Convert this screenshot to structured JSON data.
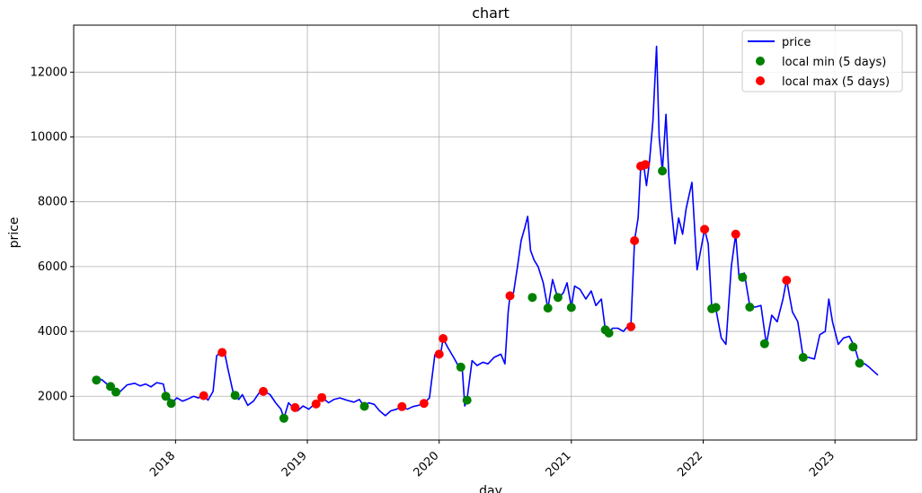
{
  "chart_data": {
    "type": "line",
    "title": "chart",
    "xlabel": "day",
    "ylabel": "price",
    "x_range": [
      "2017-03-25",
      "2023-08-15"
    ],
    "ylim": [
      650,
      13450
    ],
    "grid": true,
    "legend_placement": "top-right",
    "x_ticks": [
      "2018",
      "2019",
      "2020",
      "2021",
      "2022",
      "2023"
    ],
    "y_ticks": [
      2000,
      4000,
      6000,
      8000,
      10000,
      12000
    ],
    "series": [
      {
        "name": "price",
        "kind": "line",
        "color": "#0000ff",
        "points": [
          [
            "2017-05-27",
            2450
          ],
          [
            "2017-06-10",
            2520
          ],
          [
            "2017-06-25",
            2380
          ],
          [
            "2017-07-05",
            2280
          ],
          [
            "2017-07-20",
            2120
          ],
          [
            "2017-08-01",
            2150
          ],
          [
            "2017-08-20",
            2350
          ],
          [
            "2017-09-10",
            2400
          ],
          [
            "2017-09-25",
            2320
          ],
          [
            "2017-10-10",
            2380
          ],
          [
            "2017-10-25",
            2290
          ],
          [
            "2017-11-10",
            2420
          ],
          [
            "2017-11-28",
            2380
          ],
          [
            "2017-12-05",
            2020
          ],
          [
            "2017-12-12",
            2050
          ],
          [
            "2017-12-20",
            1780
          ],
          [
            "2018-01-05",
            1950
          ],
          [
            "2018-01-20",
            1850
          ],
          [
            "2018-02-05",
            1920
          ],
          [
            "2018-02-20",
            2000
          ],
          [
            "2018-03-05",
            1950
          ],
          [
            "2018-03-20",
            2020
          ],
          [
            "2018-04-01",
            1880
          ],
          [
            "2018-04-15",
            2150
          ],
          [
            "2018-04-25",
            3250
          ],
          [
            "2018-05-05",
            3350
          ],
          [
            "2018-05-15",
            3450
          ],
          [
            "2018-05-25",
            2900
          ],
          [
            "2018-06-10",
            2100
          ],
          [
            "2018-06-25",
            1900
          ],
          [
            "2018-07-05",
            2050
          ],
          [
            "2018-07-20",
            1720
          ],
          [
            "2018-08-05",
            1850
          ],
          [
            "2018-08-20",
            2100
          ],
          [
            "2018-09-05",
            2150
          ],
          [
            "2018-09-20",
            2050
          ],
          [
            "2018-10-05",
            1800
          ],
          [
            "2018-10-20",
            1600
          ],
          [
            "2018-10-28",
            1320
          ],
          [
            "2018-11-10",
            1800
          ],
          [
            "2018-11-22",
            1650
          ],
          [
            "2018-12-05",
            1550
          ],
          [
            "2018-12-20",
            1700
          ],
          [
            "2019-01-05",
            1600
          ],
          [
            "2019-01-20",
            1750
          ],
          [
            "2019-02-02",
            1850
          ],
          [
            "2019-02-12",
            1950
          ],
          [
            "2019-03-01",
            1800
          ],
          [
            "2019-03-15",
            1900
          ],
          [
            "2019-04-01",
            1950
          ],
          [
            "2019-04-20",
            1880
          ],
          [
            "2019-05-10",
            1820
          ],
          [
            "2019-05-25",
            1900
          ],
          [
            "2019-06-08",
            1680
          ],
          [
            "2019-06-20",
            1800
          ],
          [
            "2019-07-05",
            1750
          ],
          [
            "2019-07-20",
            1550
          ],
          [
            "2019-08-05",
            1400
          ],
          [
            "2019-08-20",
            1550
          ],
          [
            "2019-09-05",
            1600
          ],
          [
            "2019-09-20",
            1680
          ],
          [
            "2019-10-05",
            1600
          ],
          [
            "2019-10-20",
            1680
          ],
          [
            "2019-11-05",
            1720
          ],
          [
            "2019-11-20",
            1780
          ],
          [
            "2019-12-05",
            1950
          ],
          [
            "2019-12-20",
            3280
          ],
          [
            "2020-01-05",
            3300
          ],
          [
            "2020-01-12",
            3780
          ],
          [
            "2020-01-25",
            3500
          ],
          [
            "2020-02-10",
            3200
          ],
          [
            "2020-02-25",
            2900
          ],
          [
            "2020-03-05",
            2850
          ],
          [
            "2020-03-12",
            1700
          ],
          [
            "2020-03-18",
            1900
          ],
          [
            "2020-04-01",
            3100
          ],
          [
            "2020-04-15",
            2950
          ],
          [
            "2020-05-01",
            3050
          ],
          [
            "2020-05-15",
            3000
          ],
          [
            "2020-06-01",
            3200
          ],
          [
            "2020-06-20",
            3300
          ],
          [
            "2020-07-01",
            3000
          ],
          [
            "2020-07-10",
            4600
          ],
          [
            "2020-07-15",
            5100
          ],
          [
            "2020-07-25",
            5200
          ],
          [
            "2020-08-05",
            6000
          ],
          [
            "2020-08-15",
            6800
          ],
          [
            "2020-08-25",
            7200
          ],
          [
            "2020-09-02",
            7550
          ],
          [
            "2020-09-10",
            6500
          ],
          [
            "2020-09-20",
            6200
          ],
          [
            "2020-10-01",
            6000
          ],
          [
            "2020-10-15",
            5500
          ],
          [
            "2020-10-28",
            4700
          ],
          [
            "2020-11-10",
            5600
          ],
          [
            "2020-11-25",
            5000
          ],
          [
            "2020-12-10",
            5200
          ],
          [
            "2020-12-20",
            5500
          ],
          [
            "2021-01-01",
            4750
          ],
          [
            "2021-01-10",
            5400
          ],
          [
            "2021-01-25",
            5300
          ],
          [
            "2021-02-10",
            5000
          ],
          [
            "2021-02-25",
            5250
          ],
          [
            "2021-03-10",
            4800
          ],
          [
            "2021-03-25",
            5000
          ],
          [
            "2021-04-05",
            4050
          ],
          [
            "2021-04-15",
            3950
          ],
          [
            "2021-04-25",
            4100
          ],
          [
            "2021-05-10",
            4100
          ],
          [
            "2021-05-25",
            4000
          ],
          [
            "2021-06-05",
            4150
          ],
          [
            "2021-06-15",
            4200
          ],
          [
            "2021-06-25",
            6800
          ],
          [
            "2021-07-05",
            7500
          ],
          [
            "2021-07-12",
            9100
          ],
          [
            "2021-07-20",
            9150
          ],
          [
            "2021-07-28",
            8500
          ],
          [
            "2021-08-05",
            9200
          ],
          [
            "2021-08-15",
            10500
          ],
          [
            "2021-08-25",
            12800
          ],
          [
            "2021-09-01",
            10000
          ],
          [
            "2021-09-10",
            8950
          ],
          [
            "2021-09-20",
            10700
          ],
          [
            "2021-09-28",
            8800
          ],
          [
            "2021-10-05",
            7800
          ],
          [
            "2021-10-15",
            6700
          ],
          [
            "2021-10-25",
            7500
          ],
          [
            "2021-11-05",
            7000
          ],
          [
            "2021-11-15",
            7800
          ],
          [
            "2021-12-01",
            8600
          ],
          [
            "2021-12-15",
            5900
          ],
          [
            "2021-12-25",
            6500
          ],
          [
            "2022-01-05",
            7150
          ],
          [
            "2022-01-15",
            6700
          ],
          [
            "2022-01-25",
            4700
          ],
          [
            "2022-02-05",
            4700
          ],
          [
            "2022-02-20",
            3800
          ],
          [
            "2022-03-05",
            3600
          ],
          [
            "2022-03-20",
            6000
          ],
          [
            "2022-04-01",
            7000
          ],
          [
            "2022-04-10",
            5700
          ],
          [
            "2022-04-25",
            5800
          ],
          [
            "2022-05-10",
            4800
          ],
          [
            "2022-05-25",
            4750
          ],
          [
            "2022-06-10",
            4800
          ],
          [
            "2022-06-25",
            3600
          ],
          [
            "2022-07-10",
            4500
          ],
          [
            "2022-07-25",
            4300
          ],
          [
            "2022-08-10",
            5000
          ],
          [
            "2022-08-20",
            5600
          ],
          [
            "2022-09-05",
            4600
          ],
          [
            "2022-09-20",
            4300
          ],
          [
            "2022-10-05",
            3200
          ],
          [
            "2022-10-20",
            3200
          ],
          [
            "2022-11-05",
            3150
          ],
          [
            "2022-11-20",
            3900
          ],
          [
            "2022-12-05",
            4000
          ],
          [
            "2022-12-15",
            5000
          ],
          [
            "2022-12-25",
            4300
          ],
          [
            "2023-01-10",
            3600
          ],
          [
            "2023-01-25",
            3800
          ],
          [
            "2023-02-10",
            3850
          ],
          [
            "2023-02-25",
            3500
          ],
          [
            "2023-03-10",
            3000
          ],
          [
            "2023-03-25",
            3000
          ],
          [
            "2023-04-05",
            2900
          ],
          [
            "2023-04-20",
            2750
          ],
          [
            "2023-04-30",
            2650
          ]
        ]
      },
      {
        "name": "local min (5 days)",
        "kind": "scatter",
        "color": "#008000",
        "points": [
          [
            "2017-05-27",
            2500
          ],
          [
            "2017-07-05",
            2300
          ],
          [
            "2017-07-20",
            2130
          ],
          [
            "2017-12-05",
            2000
          ],
          [
            "2017-12-20",
            1780
          ],
          [
            "2018-06-15",
            2030
          ],
          [
            "2018-10-28",
            1320
          ],
          [
            "2019-06-08",
            1690
          ],
          [
            "2020-03-01",
            2900
          ],
          [
            "2020-03-18",
            1880
          ],
          [
            "2020-09-15",
            5050
          ],
          [
            "2020-10-28",
            4720
          ],
          [
            "2020-11-25",
            5050
          ],
          [
            "2021-01-01",
            4740
          ],
          [
            "2021-04-05",
            4050
          ],
          [
            "2021-04-15",
            3950
          ],
          [
            "2021-09-10",
            8950
          ],
          [
            "2022-01-25",
            4700
          ],
          [
            "2022-02-05",
            4740
          ],
          [
            "2022-04-20",
            5670
          ],
          [
            "2022-05-10",
            4750
          ],
          [
            "2022-06-20",
            3620
          ],
          [
            "2022-10-05",
            3200
          ],
          [
            "2023-02-20",
            3520
          ],
          [
            "2023-03-10",
            3020
          ]
        ]
      },
      {
        "name": "local max (5 days)",
        "kind": "scatter",
        "color": "#ff0000",
        "points": [
          [
            "2018-03-20",
            2020
          ],
          [
            "2018-05-10",
            3350
          ],
          [
            "2018-09-01",
            2150
          ],
          [
            "2018-11-28",
            1650
          ],
          [
            "2019-01-25",
            1760
          ],
          [
            "2019-02-10",
            1960
          ],
          [
            "2019-09-20",
            1680
          ],
          [
            "2019-11-20",
            1780
          ],
          [
            "2020-01-01",
            3300
          ],
          [
            "2020-01-12",
            3780
          ],
          [
            "2020-07-15",
            5100
          ],
          [
            "2021-06-15",
            4150
          ],
          [
            "2021-06-25",
            6800
          ],
          [
            "2021-07-12",
            9100
          ],
          [
            "2021-07-25",
            9150
          ],
          [
            "2022-01-05",
            7150
          ],
          [
            "2022-04-01",
            7000
          ],
          [
            "2022-08-20",
            5580
          ]
        ]
      }
    ]
  }
}
